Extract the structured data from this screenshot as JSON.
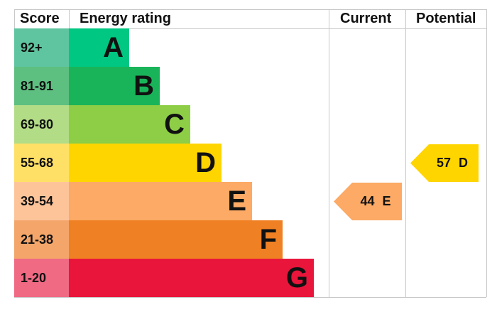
{
  "chart_data": {
    "type": "bar",
    "headers": {
      "score": "Score",
      "rating": "Energy rating",
      "current": "Current",
      "potential": "Potential"
    },
    "bands": [
      {
        "letter": "A",
        "range": "92+",
        "color": "#00c781",
        "score_color": "#5ec5a0"
      },
      {
        "letter": "B",
        "range": "81-91",
        "color": "#19b459",
        "score_color": "#5dbf80"
      },
      {
        "letter": "C",
        "range": "69-80",
        "color": "#8dce46",
        "score_color": "#b3dc86"
      },
      {
        "letter": "D",
        "range": "55-68",
        "color": "#ffd500",
        "score_color": "#ffe066"
      },
      {
        "letter": "E",
        "range": "39-54",
        "color": "#fcaa65",
        "score_color": "#fdc49a"
      },
      {
        "letter": "F",
        "range": "21-38",
        "color": "#ef8023",
        "score_color": "#f4a66a"
      },
      {
        "letter": "G",
        "range": "1-20",
        "color": "#e9153b",
        "score_color": "#f06a84"
      }
    ],
    "current": {
      "value": 44,
      "band": "E",
      "label": "44 E"
    },
    "potential": {
      "value": 57,
      "band": "D",
      "label": "57 D"
    }
  }
}
